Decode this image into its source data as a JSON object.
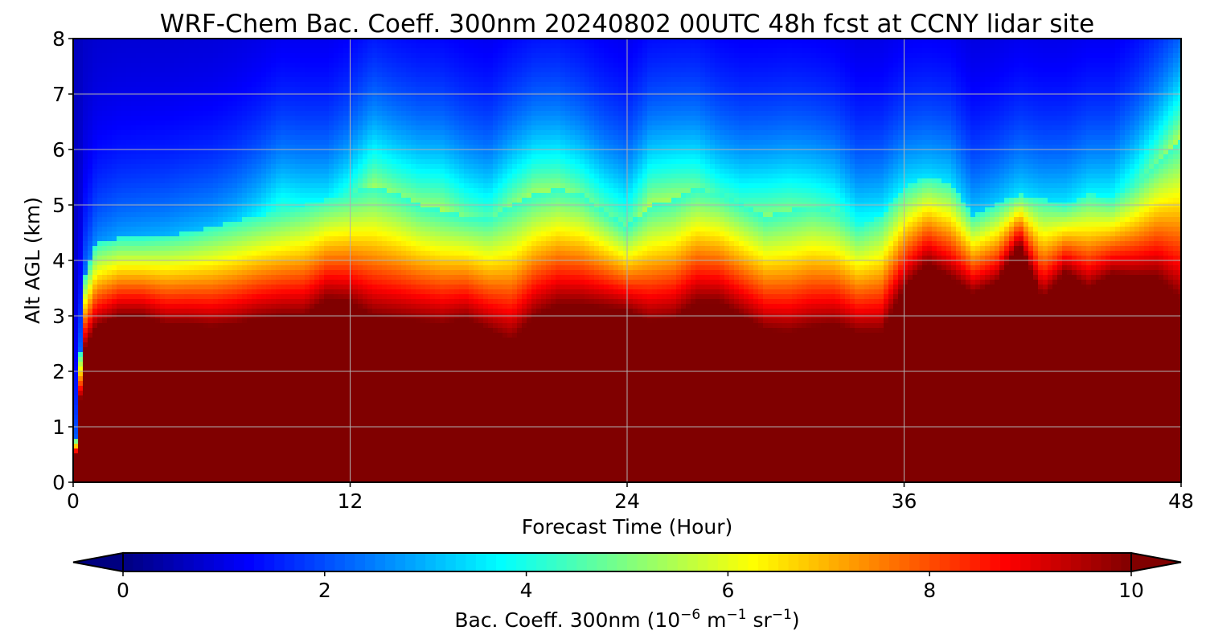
{
  "chart_data": {
    "type": "heatmap",
    "title": "WRF-Chem Bac. Coeff. 300nm  20240802 00UTC 48h fcst at CCNY lidar site",
    "xlabel": "Forecast Time (Hour)",
    "ylabel": "Alt AGL (km)",
    "xlim": [
      0,
      48
    ],
    "ylim": [
      0,
      8
    ],
    "x_ticks": [
      "0",
      "12",
      "24",
      "36",
      "48"
    ],
    "y_ticks": [
      "0",
      "1",
      "2",
      "3",
      "4",
      "5",
      "6",
      "7",
      "8"
    ],
    "grid": true,
    "colormap": "jet",
    "colorbar": {
      "label_main": "Bac. Coeff. 300nm  (10",
      "label_exp1": "−6",
      "label_mid": " m",
      "label_exp2": "−1",
      "label_mid2": " sr",
      "label_exp3": "−1",
      "label_end": ")",
      "range": [
        0,
        10
      ],
      "ticks": [
        "0",
        "2",
        "4",
        "6",
        "8",
        "10"
      ],
      "extend": "both",
      "orientation": "horizontal"
    },
    "hours": [
      0,
      0.5,
      1,
      2,
      3,
      4,
      5,
      6,
      7,
      8,
      9,
      10,
      11,
      12,
      13,
      14,
      15,
      16,
      17,
      18,
      19,
      20,
      21,
      22,
      23,
      24,
      25,
      26,
      27,
      28,
      29,
      30,
      31,
      32,
      33,
      34,
      35,
      36,
      37,
      38,
      39,
      40,
      41,
      42,
      43,
      44,
      45,
      46,
      47,
      48
    ],
    "saturated_top_km": [
      0,
      2.4,
      2.8,
      3.0,
      3.0,
      2.85,
      2.85,
      2.8,
      2.85,
      2.95,
      3.0,
      3.0,
      3.3,
      3.25,
      3.0,
      2.95,
      2.9,
      2.85,
      2.95,
      2.75,
      2.55,
      3.0,
      3.2,
      3.2,
      3.15,
      3.1,
      2.9,
      2.95,
      3.25,
      3.25,
      3.0,
      2.75,
      2.7,
      2.8,
      2.85,
      2.7,
      2.7,
      3.5,
      3.95,
      3.7,
      3.4,
      3.6,
      4.3,
      3.3,
      3.8,
      3.5,
      3.75,
      3.7,
      3.7,
      3.3
    ],
    "plume_top_km": [
      0,
      3.7,
      4.3,
      4.4,
      4.4,
      4.45,
      4.5,
      4.6,
      4.7,
      4.8,
      4.9,
      5.0,
      5.1,
      5.2,
      5.35,
      5.2,
      5.0,
      4.9,
      4.8,
      4.75,
      5.0,
      5.2,
      5.3,
      5.2,
      4.9,
      4.6,
      5.0,
      5.1,
      5.3,
      5.2,
      5.0,
      4.8,
      4.9,
      5.0,
      4.9,
      4.6,
      4.8,
      5.3,
      5.5,
      5.4,
      4.8,
      5.0,
      5.2,
      5.1,
      5.0,
      5.2,
      5.1,
      5.4,
      5.8,
      6.2
    ],
    "aloft_layer_strength": [
      0,
      0.3,
      0.6,
      0.8,
      0.9,
      0.9,
      1.0,
      1.0,
      1.2,
      1.6,
      2.2,
      1.8,
      1.6,
      2.2,
      3.2,
      3.0,
      3.1,
      3.3,
      2.8,
      2.5,
      3.0,
      3.3,
      3.1,
      2.8,
      2.6,
      2.7,
      3.4,
      3.3,
      2.8,
      2.3,
      2.4,
      3.0,
      2.9,
      2.5,
      2.4,
      2.0,
      1.7,
      1.6,
      1.4,
      1.4,
      1.2,
      1.2,
      1.4,
      1.3,
      1.5,
      1.6,
      1.8,
      2.2,
      2.8,
      3.6
    ]
  }
}
